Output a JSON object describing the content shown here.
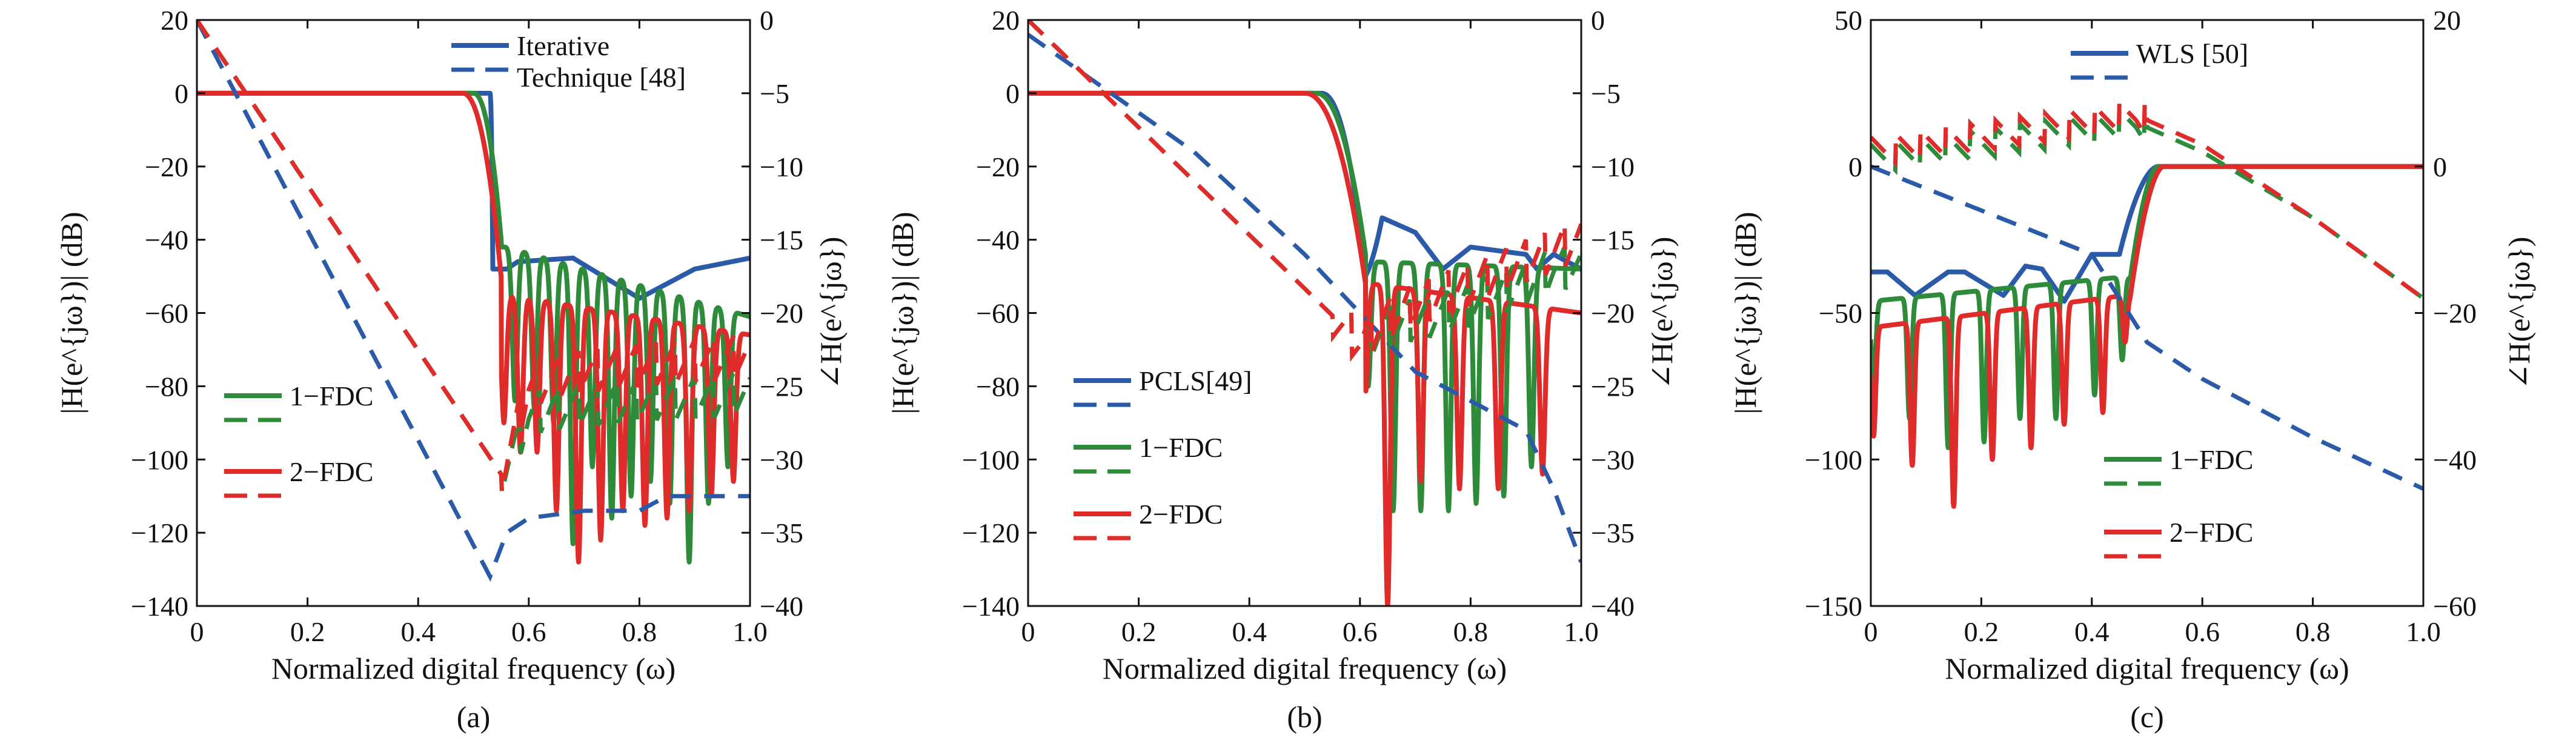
{
  "chart_data": [
    {
      "type": "line",
      "caption": "(a)",
      "xlabel": "Normalized digital frequency (ω)",
      "ylabel_left": "|H(e^{jω})| (dB)",
      "ylabel_right": "∠H(e^{jω})",
      "xlim": [
        0,
        1
      ],
      "ylim_left": [
        -140,
        20
      ],
      "ylim_right": [
        -40,
        0
      ],
      "xticks": [
        "0",
        "0.2",
        "0.4",
        "0.6",
        "0.8",
        "1.0"
      ],
      "yticks_left": [
        "20",
        "0",
        "−20",
        "−40",
        "−60",
        "−80",
        "−100",
        "−120",
        "−140"
      ],
      "yticks_right": [
        "0",
        "−5",
        "−10",
        "−15",
        "−20",
        "−25",
        "−30",
        "−35",
        "−40"
      ],
      "grid": false,
      "colors": {
        "iterative": "#2a5aa8",
        "fdc1": "#2e8b3a",
        "fdc2": "#e02b2b"
      },
      "legend_groups": [
        {
          "lines": [
            "Iterative",
            "Technique [48]"
          ],
          "color": "#2a5aa8"
        },
        {
          "lines": [
            "1−FDC"
          ],
          "color": "#2e8b3a"
        },
        {
          "lines": [
            "2−FDC"
          ],
          "color": "#e02b2b"
        }
      ],
      "magnitude_series": [
        {
          "key": "iterative",
          "color": "#2a5aa8",
          "pass_end": 0.53,
          "edge": 0.535,
          "trans_bottom": -48,
          "stop_points": [
            [
              0.56,
              -48
            ],
            [
              0.58,
              -46
            ],
            [
              0.68,
              -45
            ],
            [
              0.8,
              -56
            ],
            [
              0.9,
              -48
            ],
            [
              1.0,
              -45
            ]
          ],
          "nulls": [],
          "null_depths": []
        },
        {
          "key": "fdc1",
          "color": "#2e8b3a",
          "pass_end": 0.5,
          "edge": 0.55,
          "trans_bottom": -40,
          "stop_points": [
            [
              0.56,
              -42
            ],
            [
              1.0,
              -61
            ]
          ],
          "nulls": [
            0.575,
            0.61,
            0.645,
            0.68,
            0.715,
            0.75,
            0.785,
            0.82,
            0.855,
            0.89,
            0.925,
            0.96
          ],
          "null_depths": [
            -78,
            -80,
            -84,
            -117,
            -96,
            -110,
            -104,
            -100,
            -106,
            -122,
            -106,
            -96
          ]
        },
        {
          "key": "fdc2",
          "color": "#e02b2b",
          "pass_end": 0.48,
          "edge": 0.55,
          "trans_bottom": -50,
          "stop_points": [
            [
              0.56,
              -55
            ],
            [
              1.0,
              -66
            ]
          ],
          "nulls": [
            0.555,
            0.585,
            0.615,
            0.65,
            0.69,
            0.73,
            0.77,
            0.81,
            0.85,
            0.89,
            0.93,
            0.97
          ],
          "null_depths": [
            -84,
            -92,
            -92,
            -108,
            -122,
            -116,
            -108,
            -112,
            -110,
            -108,
            -104,
            -100
          ]
        }
      ],
      "phase_series": [
        {
          "key": "iterative",
          "color": "#2a5aa8",
          "points": [
            [
              0,
              0
            ],
            [
              0.53,
              -38
            ],
            [
              0.56,
              -35
            ],
            [
              0.6,
              -34
            ],
            [
              0.7,
              -33.5
            ],
            [
              0.8,
              -33.5
            ],
            [
              0.85,
              -32.5
            ],
            [
              0.9,
              -32.5
            ],
            [
              1.0,
              -32.5
            ]
          ]
        },
        {
          "key": "fdc1",
          "color": "#2e8b3a",
          "points": [
            [
              0,
              0
            ],
            [
              0.55,
              -31
            ],
            [
              0.6,
              -27
            ],
            [
              0.65,
              -26.5
            ],
            [
              0.7,
              -26.3
            ],
            [
              0.8,
              -26
            ],
            [
              0.9,
              -25.8
            ],
            [
              1.0,
              -25.5
            ]
          ],
          "sawtooth": true
        },
        {
          "key": "fdc2",
          "color": "#e02b2b",
          "points": [
            [
              0,
              0
            ],
            [
              0.55,
              -31
            ],
            [
              0.6,
              -25
            ],
            [
              0.7,
              -24
            ],
            [
              0.8,
              -23.6
            ],
            [
              0.9,
              -23.3
            ],
            [
              1.0,
              -23
            ]
          ],
          "sawtooth": true
        }
      ]
    },
    {
      "type": "line",
      "caption": "(b)",
      "xlabel": "Normalized digital frequency (ω)",
      "ylabel_left": "|H(e^{jω})| (dB)",
      "ylabel_right": "∠H(e^{jω})",
      "xlim": [
        0,
        1
      ],
      "ylim_left": [
        -140,
        20
      ],
      "ylim_right": [
        -40,
        0
      ],
      "xticks": [
        "0",
        "0.2",
        "0.4",
        "0.6",
        "0.8",
        "1.0"
      ],
      "yticks_left": [
        "20",
        "0",
        "−20",
        "−40",
        "−60",
        "−80",
        "−100",
        "−120",
        "−140"
      ],
      "yticks_right": [
        "0",
        "−5",
        "−10",
        "−15",
        "−20",
        "−25",
        "−30",
        "−35",
        "−40"
      ],
      "grid": false,
      "colors": {
        "pcls": "#2a5aa8",
        "fdc1": "#2e8b3a",
        "fdc2": "#e02b2b"
      },
      "legend_groups": [
        {
          "lines": [
            "PCLS[49]"
          ],
          "color": "#2a5aa8"
        },
        {
          "lines": [
            "1−FDC"
          ],
          "color": "#2e8b3a"
        },
        {
          "lines": [
            "2−FDC"
          ],
          "color": "#e02b2b"
        }
      ],
      "magnitude_series": [
        {
          "key": "pcls",
          "color": "#2a5aa8",
          "pass_end": 0.53,
          "edge": 0.61,
          "trans_bottom": -50,
          "stop_points": [
            [
              0.615,
              -40
            ],
            [
              0.64,
              -34
            ],
            [
              0.7,
              -38
            ],
            [
              0.75,
              -48
            ],
            [
              0.8,
              -42
            ],
            [
              0.85,
              -43
            ],
            [
              0.9,
              -44
            ],
            [
              0.92,
              -48
            ],
            [
              0.95,
              -44
            ],
            [
              1.0,
              -48
            ]
          ],
          "nulls": [],
          "null_depths": []
        },
        {
          "key": "fdc1",
          "color": "#2e8b3a",
          "pass_end": 0.52,
          "edge": 0.61,
          "trans_bottom": -44,
          "stop_points": [
            [
              0.62,
              -46
            ],
            [
              1.0,
              -48
            ]
          ],
          "nulls": [
            0.615,
            0.66,
            0.71,
            0.76,
            0.81,
            0.86,
            0.91
          ],
          "null_depths": [
            -74,
            -108,
            -108,
            -108,
            -106,
            -104,
            -96
          ]
        },
        {
          "key": "fdc2",
          "color": "#e02b2b",
          "pass_end": 0.5,
          "edge": 0.61,
          "trans_bottom": -52,
          "stop_points": [
            [
              0.62,
              -52
            ],
            [
              1.0,
              -60
            ]
          ],
          "nulls": [
            0.61,
            0.65,
            0.71,
            0.78,
            0.85,
            0.93
          ],
          "null_depths": [
            -76,
            -134,
            -100,
            -102,
            -102,
            -98
          ]
        }
      ],
      "phase_series": [
        {
          "key": "pcls",
          "color": "#2a5aa8",
          "points": [
            [
              0,
              -1
            ],
            [
              0.3,
              -9
            ],
            [
              0.5,
              -16
            ],
            [
              0.6,
              -20
            ],
            [
              0.7,
              -24
            ],
            [
              0.8,
              -26
            ],
            [
              0.9,
              -28
            ],
            [
              0.95,
              -32
            ],
            [
              1.0,
              -37
            ]
          ]
        },
        {
          "key": "fdc1",
          "color": "#2e8b3a",
          "points": [
            [
              0,
              0
            ],
            [
              0.6,
              -22
            ],
            [
              0.65,
              -21
            ],
            [
              0.7,
              -20.5
            ],
            [
              0.8,
              -19.5
            ],
            [
              0.9,
              -18
            ],
            [
              0.95,
              -17
            ]
          ],
          "sawtooth": true
        },
        {
          "key": "fdc2",
          "color": "#e02b2b",
          "points": [
            [
              0,
              0
            ],
            [
              0.6,
              -22
            ],
            [
              0.65,
              -20.5
            ],
            [
              0.7,
              -19.5
            ],
            [
              0.8,
              -18
            ],
            [
              0.9,
              -16.5
            ],
            [
              1.0,
              -15
            ]
          ],
          "sawtooth": true
        }
      ]
    },
    {
      "type": "line",
      "caption": "(c)",
      "xlabel": "Normalized digital frequency (ω)",
      "ylabel_left": "|H(e^{jω})| (dB)",
      "ylabel_right": "∠H(e^{jω})",
      "xlim": [
        0,
        1
      ],
      "ylim_left": [
        -150,
        50
      ],
      "ylim_right": [
        -60,
        20
      ],
      "xticks": [
        "0",
        "0.2",
        "0.4",
        "0.6",
        "0.8",
        "1.0"
      ],
      "yticks_left": [
        "50",
        "0",
        "−50",
        "−100",
        "−150"
      ],
      "yticks_right": [
        "20",
        "0",
        "−20",
        "−40",
        "−60"
      ],
      "grid": false,
      "colors": {
        "wls": "#2a5aa8",
        "fdc1": "#2e8b3a",
        "fdc2": "#e02b2b"
      },
      "legend_groups": [
        {
          "lines": [
            "WLS [50]"
          ],
          "color": "#2a5aa8"
        },
        {
          "lines": [
            "1−FDC"
          ],
          "color": "#2e8b3a"
        },
        {
          "lines": [
            "2−FDC"
          ],
          "color": "#e02b2b"
        }
      ],
      "magnitude_series": [
        {
          "key": "wls",
          "color": "#2a5aa8",
          "highpass": true,
          "pass_start": 0.52,
          "edge": 0.45,
          "stop_points": [
            [
              0,
              -36
            ],
            [
              0.03,
              -36
            ],
            [
              0.08,
              -44
            ],
            [
              0.14,
              -36
            ],
            [
              0.17,
              -36
            ],
            [
              0.24,
              -44
            ],
            [
              0.28,
              -34
            ],
            [
              0.31,
              -35
            ],
            [
              0.35,
              -46
            ],
            [
              0.4,
              -30
            ],
            [
              0.44,
              -30
            ]
          ],
          "nulls": [],
          "null_depths": []
        },
        {
          "key": "fdc1",
          "color": "#2e8b3a",
          "highpass": true,
          "pass_start": 0.52,
          "edge": 0.47,
          "stop_points": [
            [
              0,
              -46
            ],
            [
              0.44,
              -38
            ]
          ],
          "nulls": [
            0.005,
            0.07,
            0.14,
            0.205,
            0.27,
            0.335,
            0.405,
            0.455
          ],
          "null_depths": [
            -76,
            -86,
            -96,
            -94,
            -86,
            -86,
            -78,
            -66
          ]
        },
        {
          "key": "fdc2",
          "color": "#e02b2b",
          "highpass": true,
          "pass_start": 0.53,
          "edge": 0.47,
          "stop_points": [
            [
              0,
              -55
            ],
            [
              0.46,
              -44
            ]
          ],
          "nulls": [
            0.005,
            0.075,
            0.15,
            0.22,
            0.29,
            0.35,
            0.42,
            0.46
          ],
          "null_depths": [
            -92,
            -102,
            -116,
            -100,
            -96,
            -88,
            -84,
            -60
          ]
        }
      ],
      "phase_series": [
        {
          "key": "wls",
          "color": "#2a5aa8",
          "points": [
            [
              0,
              0
            ],
            [
              0.2,
              -6
            ],
            [
              0.4,
              -12
            ],
            [
              0.5,
              -24
            ],
            [
              0.6,
              -29
            ],
            [
              0.8,
              -37
            ],
            [
              1.0,
              -44
            ]
          ]
        },
        {
          "key": "fdc1",
          "color": "#2e8b3a",
          "points": [
            [
              0,
              1
            ],
            [
              0.48,
              6
            ],
            [
              0.6,
              2
            ],
            [
              0.8,
              -7
            ],
            [
              1.0,
              -18
            ]
          ],
          "sawtooth_until": 0.5
        },
        {
          "key": "fdc2",
          "color": "#e02b2b",
          "points": [
            [
              0,
              2
            ],
            [
              0.48,
              7
            ],
            [
              0.6,
              3
            ],
            [
              0.8,
              -7
            ],
            [
              1.0,
              -18
            ]
          ],
          "sawtooth_until": 0.5
        }
      ]
    }
  ]
}
